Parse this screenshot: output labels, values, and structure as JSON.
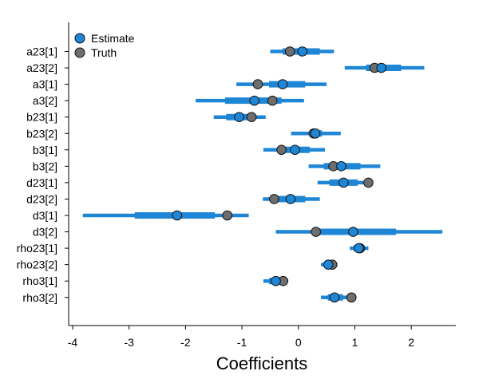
{
  "chart_data": {
    "type": "interval",
    "xlabel": "Coefficients",
    "ylabel": "",
    "xlim": [
      -4.1,
      2.8
    ],
    "xticks": [
      -4,
      -3,
      -2,
      -1,
      0,
      1,
      2
    ],
    "grid": false,
    "legend_position": "top-left",
    "legend": [
      {
        "name": "Estimate",
        "color": "#1f86d6"
      },
      {
        "name": "Truth",
        "color": "#6e6e6e"
      }
    ],
    "parameters": [
      "a23[1]",
      "a23[2]",
      "a3[1]",
      "a3[2]",
      "b23[1]",
      "b23[2]",
      "b3[1]",
      "b3[2]",
      "d23[1]",
      "d23[2]",
      "d3[1]",
      "d3[2]",
      "rho23[1]",
      "rho23[2]",
      "rho3[1]",
      "rho3[2]"
    ],
    "series": [
      {
        "name": "Estimate",
        "estimate": [
          0.07,
          1.47,
          -0.28,
          -0.78,
          -1.05,
          0.3,
          -0.06,
          0.76,
          0.8,
          -0.14,
          -2.15,
          0.97,
          1.07,
          0.53,
          -0.4,
          0.64
        ],
        "inner_low": [
          -0.28,
          1.2,
          -0.52,
          -1.3,
          -1.28,
          0.2,
          -0.35,
          0.45,
          0.55,
          -0.42,
          -2.9,
          0.33,
          0.98,
          0.46,
          -0.52,
          0.52
        ],
        "inner_high": [
          0.38,
          1.82,
          0.12,
          -0.3,
          -0.82,
          0.42,
          0.2,
          1.1,
          1.05,
          0.12,
          -1.48,
          1.73,
          1.17,
          0.62,
          -0.26,
          0.79
        ],
        "outer_low": [
          -0.5,
          0.82,
          -1.1,
          -1.82,
          -1.5,
          -0.13,
          -0.62,
          0.18,
          0.34,
          -0.63,
          -3.82,
          -0.4,
          0.91,
          0.4,
          -0.62,
          0.4
        ],
        "outer_high": [
          0.63,
          2.23,
          0.5,
          0.1,
          -0.58,
          0.75,
          0.47,
          1.45,
          1.28,
          0.38,
          -0.88,
          2.55,
          1.24,
          0.69,
          -0.18,
          0.92
        ]
      },
      {
        "name": "Truth",
        "values": [
          -0.15,
          1.35,
          -0.72,
          -0.46,
          -0.83,
          0.27,
          -0.3,
          0.62,
          1.24,
          -0.43,
          -1.26,
          0.31,
          1.09,
          0.6,
          -0.27,
          0.94
        ]
      }
    ]
  }
}
